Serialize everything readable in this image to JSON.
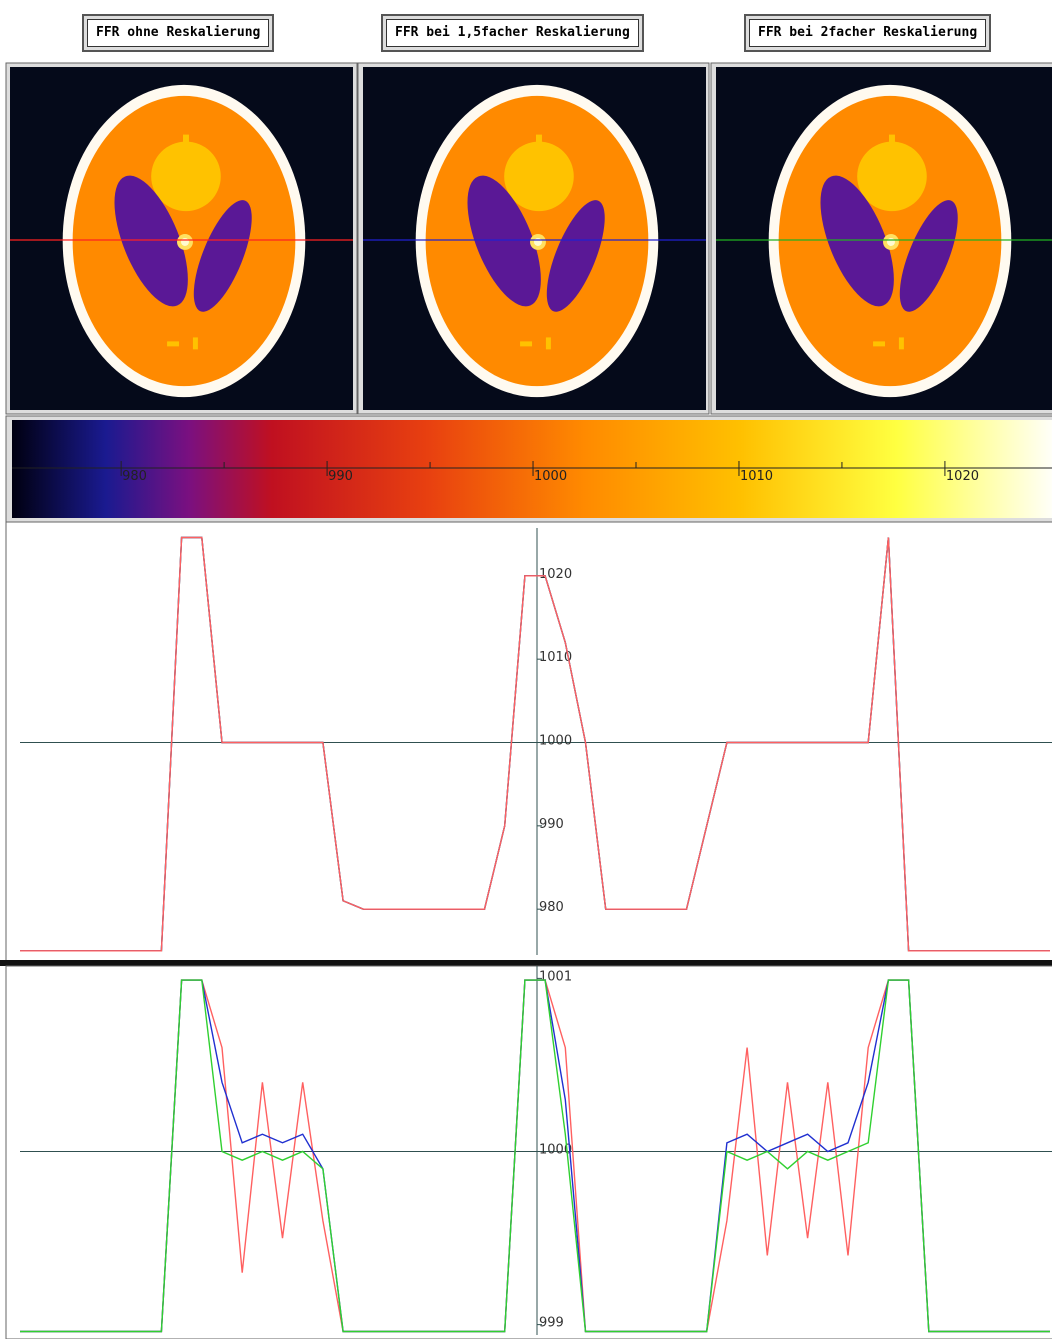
{
  "buttons": [
    "FFR ohne Reskalierung",
    "FFR bei 1,5facher Reskalierung",
    "FFR bei 2facher Reskalierung"
  ],
  "profile_line_colors": [
    "#ff2020",
    "#2020d0",
    "#20b020"
  ],
  "colorbar": {
    "xlim": [
      974.7,
      1025.2
    ],
    "xticks": [
      980,
      990,
      1000,
      1010,
      1020
    ],
    "minor_ticks": [
      985,
      995,
      1005,
      1015
    ]
  },
  "chart_data": [
    {
      "type": "line",
      "ylim": [
        974.5,
        1025.5
      ],
      "yticks": [
        980,
        990,
        1000,
        1010,
        1020
      ],
      "reference_line": 1000,
      "series": [
        {
          "color": "#20b020",
          "values": [
            975,
            975,
            975,
            975,
            975,
            975,
            975,
            975,
            1024.6,
            1024.6,
            1000,
            1000,
            1000,
            1000,
            1000,
            1000,
            981,
            980,
            980,
            980,
            980,
            980,
            980,
            980,
            990,
            1020,
            1020,
            1012,
            1000,
            980,
            980,
            980,
            980,
            980,
            990,
            1000,
            1000,
            1000,
            1000,
            1000,
            1000,
            1000,
            1000,
            1024.6,
            975,
            975,
            975,
            975,
            975,
            975,
            975,
            975
          ]
        },
        {
          "color": "#2030d0",
          "values": [
            975,
            975,
            975,
            975,
            975,
            975,
            975,
            975,
            1024.6,
            1024.6,
            1000,
            1000,
            1000,
            1000,
            1000,
            1000,
            981,
            980,
            980,
            980,
            980,
            980,
            980,
            980,
            990,
            1020,
            1020,
            1012,
            1000,
            980,
            980,
            980,
            980,
            980,
            990,
            1000,
            1000,
            1000,
            1000,
            1000,
            1000,
            1000,
            1000,
            1024.6,
            975,
            975,
            975,
            975,
            975,
            975,
            975,
            975
          ]
        },
        {
          "color": "#ff6060",
          "values": [
            975,
            975,
            975,
            975,
            975,
            975,
            975,
            975,
            1024.6,
            1024.6,
            1000,
            1000,
            1000,
            1000,
            1000,
            1000,
            981,
            980,
            980,
            980,
            980,
            980,
            980,
            980,
            990,
            1020,
            1020,
            1012,
            1000,
            980,
            980,
            980,
            980,
            980,
            990,
            1000,
            1000,
            1000,
            1000,
            1000,
            1000,
            1000,
            1000,
            1024.6,
            975,
            975,
            975,
            975,
            975,
            975,
            975,
            975
          ]
        }
      ]
    },
    {
      "type": "line",
      "ylim": [
        998.94,
        1001.06
      ],
      "yticks": [
        999,
        1000,
        1001
      ],
      "reference_line": 1000,
      "series": [
        {
          "color": "#ff6060",
          "values": [
            998.96,
            998.96,
            998.96,
            998.96,
            998.96,
            998.96,
            998.96,
            998.96,
            1000.99,
            1000.99,
            1000.6,
            999.3,
            1000.4,
            999.5,
            1000.4,
            999.6,
            998.96,
            998.96,
            998.96,
            998.96,
            998.96,
            998.96,
            998.96,
            998.96,
            998.96,
            1000.99,
            1000.99,
            1000.6,
            998.96,
            998.96,
            998.96,
            998.96,
            998.96,
            998.96,
            998.96,
            999.6,
            1000.6,
            999.4,
            1000.4,
            999.5,
            1000.4,
            999.4,
            1000.6,
            1000.99,
            1000.99,
            998.96,
            998.96,
            998.96,
            998.96,
            998.96,
            998.96,
            998.96
          ]
        },
        {
          "color": "#2030d0",
          "values": [
            998.96,
            998.96,
            998.96,
            998.96,
            998.96,
            998.96,
            998.96,
            998.96,
            1000.99,
            1000.99,
            1000.4,
            1000.05,
            1000.1,
            1000.05,
            1000.1,
            999.9,
            998.96,
            998.96,
            998.96,
            998.96,
            998.96,
            998.96,
            998.96,
            998.96,
            998.96,
            1000.99,
            1000.99,
            1000.3,
            998.96,
            998.96,
            998.96,
            998.96,
            998.96,
            998.96,
            998.96,
            1000.05,
            1000.1,
            1000,
            1000.05,
            1000.1,
            1000,
            1000.05,
            1000.4,
            1000.99,
            1000.99,
            998.96,
            998.96,
            998.96,
            998.96,
            998.96,
            998.96,
            998.96
          ]
        },
        {
          "color": "#30d030",
          "values": [
            998.96,
            998.96,
            998.96,
            998.96,
            998.96,
            998.96,
            998.96,
            998.96,
            1000.99,
            1000.99,
            1000,
            999.95,
            1000,
            999.95,
            1000,
            999.9,
            998.96,
            998.96,
            998.96,
            998.96,
            998.96,
            998.96,
            998.96,
            998.96,
            998.96,
            1000.99,
            1000.99,
            1000.1,
            998.96,
            998.96,
            998.96,
            998.96,
            998.96,
            998.96,
            998.96,
            1000,
            999.95,
            1000,
            999.9,
            1000,
            999.95,
            1000,
            1000.05,
            1000.99,
            1000.99,
            998.96,
            998.96,
            998.96,
            998.96,
            998.96,
            998.96,
            998.96
          ]
        }
      ]
    }
  ]
}
